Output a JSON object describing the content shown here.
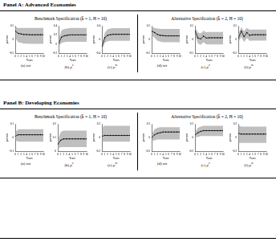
{
  "panels": [
    {
      "title": "Panel A: Advanced Economies",
      "specifications": [
        {
          "title": "Benchmark Specification (k̂ = 1, H = 10)"
        },
        {
          "title": "Alternative Specification (k̂ = 2, H = 10)"
        }
      ]
    },
    {
      "title": "Panel B: Developing Economies",
      "specifications": [
        {
          "title": "Benchmark Specification (k̂ = 1, H = 10)"
        },
        {
          "title": "Alternative Specification (k̂ = 2, H = 10)"
        }
      ]
    }
  ],
  "chart_data": [
    {
      "type": "line",
      "caption": {
        "label": "(a)",
        "var": "tot",
        "sup": ""
      },
      "xlabel": "Years",
      "ylabel": "percent",
      "x": [
        0,
        1,
        2,
        3,
        4,
        5,
        6,
        7,
        8,
        9,
        10
      ],
      "xlim": [
        0,
        10
      ],
      "xticks": [
        0,
        1,
        2,
        3,
        4,
        5,
        6,
        7,
        8,
        9,
        10
      ],
      "ylim": [
        -0.5,
        0.5
      ],
      "yticks": [
        -0.5,
        0,
        0.5
      ],
      "values": [
        0.3,
        0.22,
        0.2,
        0.18,
        0.18,
        0.17,
        0.17,
        0.17,
        0.17,
        0.17,
        0.17
      ],
      "lower": [
        0.05,
        -0.1,
        -0.12,
        -0.15,
        -0.15,
        -0.16,
        -0.16,
        -0.16,
        -0.16,
        -0.16,
        -0.16
      ],
      "upper": [
        0.45,
        0.42,
        0.42,
        0.42,
        0.42,
        0.42,
        0.42,
        0.42,
        0.42,
        0.42,
        0.42
      ],
      "color": "#000000",
      "marker": "circle",
      "grid": false
    },
    {
      "type": "line",
      "caption": {
        "label": "(b)",
        "var": "p",
        "sup": "x"
      },
      "xlabel": "Years",
      "ylabel": "percent",
      "x": [
        0,
        1,
        2,
        3,
        4,
        5,
        6,
        7,
        8,
        9,
        10
      ],
      "xlim": [
        0,
        10
      ],
      "xticks": [
        0,
        1,
        2,
        3,
        4,
        5,
        6,
        7,
        8,
        9,
        10
      ],
      "ylim": [
        -0.2,
        0.4
      ],
      "yticks": [
        -0.2,
        0,
        0.2,
        0.4
      ],
      "values": [
        0.02,
        0.15,
        0.18,
        0.19,
        0.2,
        0.2,
        0.2,
        0.2,
        0.2,
        0.2,
        0.2
      ],
      "lower": [
        -0.05,
        0.02,
        0.04,
        0.05,
        0.05,
        0.05,
        0.05,
        0.05,
        0.05,
        0.05,
        0.05
      ],
      "upper": [
        0.1,
        0.3,
        0.33,
        0.34,
        0.35,
        0.35,
        0.35,
        0.35,
        0.35,
        0.35,
        0.35
      ],
      "color": "#000000",
      "marker": "circle",
      "grid": false
    },
    {
      "type": "line",
      "caption": {
        "label": "(c)",
        "var": "p",
        "sup": "m"
      },
      "xlabel": "Years",
      "ylabel": "percent",
      "x": [
        0,
        1,
        2,
        3,
        4,
        5,
        6,
        7,
        8,
        9,
        10
      ],
      "xlim": [
        0,
        10
      ],
      "xticks": [
        0,
        1,
        2,
        3,
        4,
        5,
        6,
        7,
        8,
        9,
        10
      ],
      "ylim": [
        -0.4,
        0.4
      ],
      "yticks": [
        -0.4,
        0,
        0.4
      ],
      "values": [
        -0.2,
        0.05,
        0.12,
        0.14,
        0.15,
        0.15,
        0.15,
        0.15,
        0.15,
        0.15,
        0.15
      ],
      "lower": [
        -0.3,
        -0.1,
        -0.05,
        -0.04,
        -0.04,
        -0.04,
        -0.04,
        -0.04,
        -0.04,
        -0.04,
        -0.04
      ],
      "upper": [
        -0.1,
        0.2,
        0.3,
        0.32,
        0.33,
        0.33,
        0.33,
        0.33,
        0.33,
        0.33,
        0.33
      ],
      "color": "#000000",
      "marker": "circle",
      "grid": false
    },
    {
      "type": "line",
      "caption": {
        "label": "(d)",
        "var": "tot",
        "sup": ""
      },
      "xlabel": "Years",
      "ylabel": "percent",
      "x": [
        0,
        1,
        2,
        3,
        4,
        5,
        6,
        7,
        8,
        9,
        10
      ],
      "xlim": [
        0,
        10
      ],
      "xticks": [
        0,
        1,
        2,
        3,
        4,
        5,
        6,
        7,
        8,
        9,
        10
      ],
      "ylim": [
        -0.5,
        0.5
      ],
      "yticks": [
        -0.5,
        0,
        0.5
      ],
      "values": [
        0.3,
        0.25,
        0.18,
        0.15,
        0.14,
        0.13,
        0.13,
        0.13,
        0.13,
        0.13,
        0.13
      ],
      "lower": [
        0.15,
        0.05,
        -0.05,
        -0.08,
        -0.1,
        -0.1,
        -0.1,
        -0.1,
        -0.1,
        -0.1,
        -0.1
      ],
      "upper": [
        0.45,
        0.42,
        0.4,
        0.38,
        0.38,
        0.38,
        0.38,
        0.38,
        0.38,
        0.38,
        0.38
      ],
      "color": "#000000",
      "marker": "circle",
      "grid": false
    },
    {
      "type": "line",
      "caption": {
        "label": "(e)",
        "var": "p",
        "sup": "x"
      },
      "xlabel": "Years",
      "ylabel": "percent",
      "x": [
        0,
        1,
        2,
        3,
        4,
        5,
        6,
        7,
        8,
        9,
        10
      ],
      "xlim": [
        0,
        10
      ],
      "xticks": [
        0,
        1,
        2,
        3,
        4,
        5,
        6,
        7,
        8,
        9,
        10
      ],
      "ylim": [
        -0.5,
        0.5
      ],
      "yticks": [
        -0.5,
        0,
        0.5
      ],
      "values": [
        0.3,
        0.05,
        0.02,
        0.12,
        0.05,
        0.06,
        0.06,
        0.06,
        0.06,
        0.06,
        0.06
      ],
      "lower": [
        0.15,
        -0.15,
        -0.2,
        -0.1,
        -0.18,
        -0.18,
        -0.18,
        -0.18,
        -0.18,
        -0.18,
        -0.18
      ],
      "upper": [
        0.45,
        0.25,
        0.22,
        0.32,
        0.26,
        0.27,
        0.27,
        0.27,
        0.27,
        0.27,
        0.27
      ],
      "color": "#000000",
      "marker": "circle",
      "grid": false
    },
    {
      "type": "line",
      "caption": {
        "label": "(f)",
        "var": "p",
        "sup": "m"
      },
      "xlabel": "Years",
      "ylabel": "percent",
      "x": [
        0,
        1,
        2,
        3,
        4,
        5,
        6,
        7,
        8,
        9,
        10
      ],
      "xlim": [
        0,
        10
      ],
      "xticks": [
        0,
        1,
        2,
        3,
        4,
        5,
        6,
        7,
        8,
        9,
        10
      ],
      "ylim": [
        -0.5,
        0.5
      ],
      "yticks": [
        -0.5,
        0,
        0.5
      ],
      "values": [
        0.05,
        0.3,
        0.1,
        0.25,
        0.15,
        0.17,
        0.17,
        0.17,
        0.17,
        0.17,
        0.17
      ],
      "lower": [
        -0.1,
        0.1,
        -0.1,
        0.05,
        -0.05,
        -0.04,
        -0.04,
        -0.04,
        -0.04,
        -0.04,
        -0.04
      ],
      "upper": [
        0.2,
        0.45,
        0.3,
        0.42,
        0.35,
        0.36,
        0.36,
        0.36,
        0.36,
        0.36,
        0.36
      ],
      "color": "#000000",
      "marker": "circle",
      "grid": false
    },
    {
      "type": "line",
      "caption": {
        "label": "(a)",
        "var": "tot",
        "sup": ""
      },
      "xlabel": "Years",
      "ylabel": "percent",
      "x": [
        0,
        1,
        2,
        3,
        4,
        5,
        6,
        7,
        8,
        9,
        10
      ],
      "xlim": [
        0,
        10
      ],
      "xticks": [
        0,
        1,
        2,
        3,
        4,
        5,
        6,
        7,
        8,
        9,
        10
      ],
      "ylim": [
        -0.1,
        0.1
      ],
      "yticks": [
        -0.1,
        0,
        0.1
      ],
      "values": [
        0.01,
        0.02,
        0.02,
        0.02,
        0.02,
        0.02,
        0.02,
        0.02,
        0.02,
        0.02,
        0.02
      ],
      "lower": [
        -0.02,
        -0.03,
        -0.03,
        -0.03,
        -0.03,
        -0.03,
        -0.03,
        -0.03,
        -0.03,
        -0.03,
        -0.03
      ],
      "upper": [
        0.04,
        0.06,
        0.06,
        0.06,
        0.06,
        0.06,
        0.06,
        0.06,
        0.06,
        0.06,
        0.06
      ],
      "color": "#000000",
      "marker": "circle",
      "grid": false
    },
    {
      "type": "line",
      "caption": {
        "label": "(b)",
        "var": "p",
        "sup": "x"
      },
      "xlabel": "Years",
      "ylabel": "percent",
      "x": [
        0,
        1,
        2,
        3,
        4,
        5,
        6,
        7,
        8,
        9,
        10
      ],
      "xlim": [
        0,
        10
      ],
      "xticks": [
        0,
        1,
        2,
        3,
        4,
        5,
        6,
        7,
        8,
        9,
        10
      ],
      "ylim": [
        0,
        0.2
      ],
      "yticks": [
        0,
        0.1,
        0.2
      ],
      "values": [
        0.05,
        0.08,
        0.09,
        0.09,
        0.09,
        0.09,
        0.09,
        0.09,
        0.09,
        0.09,
        0.09
      ],
      "lower": [
        0.02,
        0.03,
        0.03,
        0.03,
        0.03,
        0.03,
        0.03,
        0.03,
        0.03,
        0.03,
        0.03
      ],
      "upper": [
        0.08,
        0.14,
        0.15,
        0.15,
        0.15,
        0.15,
        0.15,
        0.15,
        0.15,
        0.15,
        0.15
      ],
      "color": "#000000",
      "marker": "circle",
      "grid": false
    },
    {
      "type": "line",
      "caption": {
        "label": "(c)",
        "var": "p",
        "sup": "m"
      },
      "xlabel": "Years",
      "ylabel": "percent",
      "x": [
        0,
        1,
        2,
        3,
        4,
        5,
        6,
        7,
        8,
        9,
        10
      ],
      "xlim": [
        0,
        10
      ],
      "xticks": [
        0,
        1,
        2,
        3,
        4,
        5,
        6,
        7,
        8,
        9,
        10
      ],
      "ylim": [
        -0.2,
        0.2
      ],
      "yticks": [
        -0.2,
        0,
        0.2
      ],
      "values": [
        0.02,
        0.03,
        0.03,
        0.03,
        0.03,
        0.03,
        0.03,
        0.03,
        0.03,
        0.03,
        0.03
      ],
      "lower": [
        -0.06,
        -0.06,
        -0.06,
        -0.06,
        -0.06,
        -0.06,
        -0.06,
        -0.06,
        -0.06,
        -0.06,
        -0.06
      ],
      "upper": [
        0.15,
        0.17,
        0.17,
        0.17,
        0.17,
        0.17,
        0.17,
        0.17,
        0.17,
        0.17,
        0.17
      ],
      "color": "#000000",
      "marker": "circle",
      "grid": false
    },
    {
      "type": "line",
      "caption": {
        "label": "(d)",
        "var": "tot",
        "sup": ""
      },
      "xlabel": "Years",
      "ylabel": "percent",
      "x": [
        0,
        1,
        2,
        3,
        4,
        5,
        6,
        7,
        8,
        9,
        10
      ],
      "xlim": [
        0,
        10
      ],
      "xticks": [
        0,
        1,
        2,
        3,
        4,
        5,
        6,
        7,
        8,
        9,
        10
      ],
      "ylim": [
        -0.2,
        0.2
      ],
      "yticks": [
        -0.2,
        0,
        0.2
      ],
      "values": [
        0,
        0.04,
        0.06,
        0.07,
        0.08,
        0.08,
        0.08,
        0.08,
        0.08,
        0.08,
        0.08
      ],
      "lower": [
        -0.05,
        -0.04,
        -0.03,
        -0.03,
        -0.03,
        -0.03,
        -0.03,
        -0.03,
        -0.03,
        -0.03,
        -0.03
      ],
      "upper": [
        0.05,
        0.12,
        0.14,
        0.15,
        0.15,
        0.15,
        0.15,
        0.15,
        0.15,
        0.15,
        0.15
      ],
      "color": "#000000",
      "marker": "circle",
      "grid": false
    },
    {
      "type": "line",
      "caption": {
        "label": "(e)",
        "var": "p",
        "sup": "x"
      },
      "xlabel": "Years",
      "ylabel": "percent",
      "x": [
        0,
        1,
        2,
        3,
        4,
        5,
        6,
        7,
        8,
        9,
        10
      ],
      "xlim": [
        0,
        10
      ],
      "xticks": [
        0,
        1,
        2,
        3,
        4,
        5,
        6,
        7,
        8,
        9,
        10
      ],
      "ylim": [
        -0.2,
        0.2
      ],
      "yticks": [
        -0.2,
        0,
        0.2
      ],
      "values": [
        0.04,
        0.07,
        0.09,
        0.1,
        0.1,
        0.1,
        0.1,
        0.1,
        0.1,
        0.1,
        0.1
      ],
      "lower": [
        0,
        0.01,
        0.02,
        0.02,
        0.02,
        0.02,
        0.02,
        0.02,
        0.02,
        0.02,
        0.02
      ],
      "upper": [
        0.08,
        0.14,
        0.16,
        0.17,
        0.17,
        0.17,
        0.17,
        0.17,
        0.17,
        0.17,
        0.17
      ],
      "color": "#000000",
      "marker": "circle",
      "grid": false
    },
    {
      "type": "line",
      "caption": {
        "label": "(f)",
        "var": "p",
        "sup": "m"
      },
      "xlabel": "Years",
      "ylabel": "percent",
      "x": [
        0,
        1,
        2,
        3,
        4,
        5,
        6,
        7,
        8,
        9,
        10
      ],
      "xlim": [
        0,
        10
      ],
      "xticks": [
        0,
        1,
        2,
        3,
        4,
        5,
        6,
        7,
        8,
        9,
        10
      ],
      "ylim": [
        -0.2,
        0.2
      ],
      "yticks": [
        -0.2,
        0,
        0.2
      ],
      "values": [
        0.06,
        0.05,
        0.05,
        0.05,
        0.05,
        0.05,
        0.05,
        0.05,
        0.05,
        0.05,
        0.05
      ],
      "lower": [
        -0.08,
        -0.08,
        -0.08,
        -0.08,
        -0.08,
        -0.08,
        -0.08,
        -0.08,
        -0.08,
        -0.08,
        -0.08
      ],
      "upper": [
        0.18,
        0.16,
        0.16,
        0.16,
        0.16,
        0.16,
        0.16,
        0.16,
        0.16,
        0.16,
        0.16
      ],
      "color": "#000000",
      "marker": "circle",
      "grid": false
    }
  ]
}
